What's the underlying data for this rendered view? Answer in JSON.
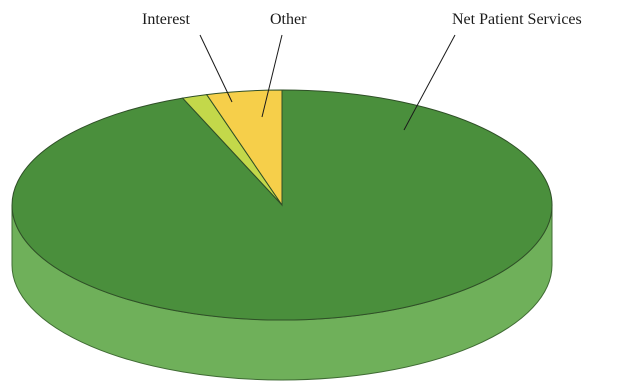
{
  "chart_data": {
    "type": "pie",
    "title": "",
    "style": "3d",
    "slices": [
      {
        "label": "Net Patient Services",
        "value": 94.0,
        "color": "#4a8f3c"
      },
      {
        "label": "Interest",
        "value": 1.5,
        "color": "#c3d84a"
      },
      {
        "label": "Other",
        "value": 4.5,
        "color": "#f6cf4a"
      }
    ]
  }
}
